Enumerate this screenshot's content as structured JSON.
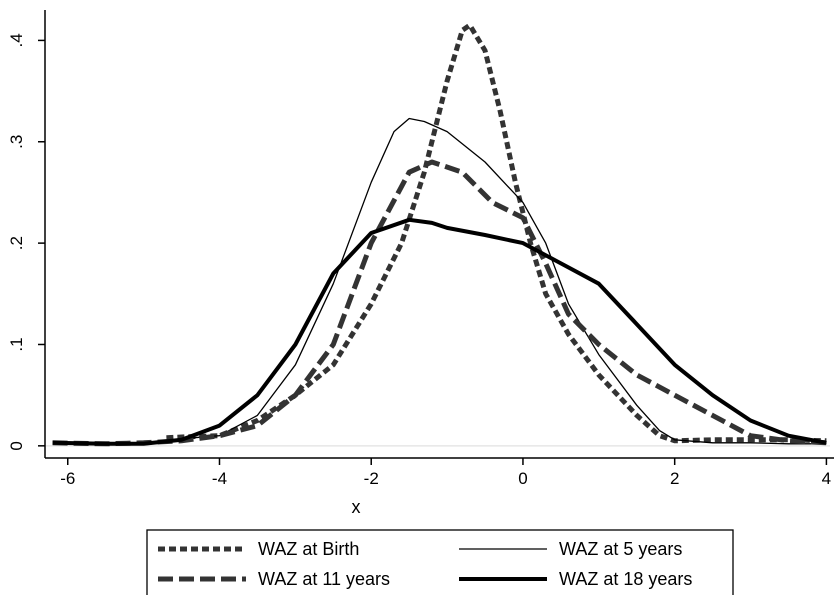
{
  "chart_data": {
    "type": "line",
    "title": "",
    "xlabel": "x",
    "ylabel": "",
    "xlim": [
      -6.3,
      4.1
    ],
    "ylim": [
      -0.012,
      0.43
    ],
    "x_ticks": [
      {
        "value": -6,
        "label": "-6"
      },
      {
        "value": -4,
        "label": "-4"
      },
      {
        "value": -2,
        "label": "-2"
      },
      {
        "value": 0,
        "label": "0"
      },
      {
        "value": 2,
        "label": "2"
      },
      {
        "value": 4,
        "label": "4"
      }
    ],
    "y_ticks": [
      {
        "value": 0,
        "label": "0"
      },
      {
        "value": 0.1,
        "label": ".1"
      },
      {
        "value": 0.2,
        "label": ".2"
      },
      {
        "value": 0.3,
        "label": ".3"
      },
      {
        "value": 0.4,
        "label": ".4"
      }
    ],
    "grid": false,
    "legend_position": "bottom",
    "series": [
      {
        "name": "WAZ at Birth",
        "style": "short-dash",
        "color": "#333333",
        "points": [
          [
            -4.7,
            0.008
          ],
          [
            -4.4,
            0.009
          ],
          [
            -4.0,
            0.01
          ],
          [
            -3.5,
            0.025
          ],
          [
            -3.0,
            0.05
          ],
          [
            -2.5,
            0.08
          ],
          [
            -2.0,
            0.14
          ],
          [
            -1.6,
            0.2
          ],
          [
            -1.3,
            0.27
          ],
          [
            -1.0,
            0.36
          ],
          [
            -0.8,
            0.41
          ],
          [
            -0.7,
            0.415
          ],
          [
            -0.5,
            0.39
          ],
          [
            -0.3,
            0.33
          ],
          [
            -0.1,
            0.26
          ],
          [
            0.1,
            0.2
          ],
          [
            0.3,
            0.15
          ],
          [
            0.6,
            0.11
          ],
          [
            1.0,
            0.07
          ],
          [
            1.5,
            0.03
          ],
          [
            1.8,
            0.01
          ],
          [
            2.0,
            0.005
          ],
          [
            2.5,
            0.006
          ],
          [
            3.0,
            0.006
          ],
          [
            3.5,
            0.006
          ],
          [
            4.0,
            0.005
          ]
        ]
      },
      {
        "name": "WAZ at 5 years",
        "style": "thin",
        "color": "#000000",
        "points": [
          [
            -4.5,
            0.007
          ],
          [
            -4.0,
            0.01
          ],
          [
            -3.5,
            0.03
          ],
          [
            -3.0,
            0.08
          ],
          [
            -2.5,
            0.16
          ],
          [
            -2.0,
            0.26
          ],
          [
            -1.7,
            0.31
          ],
          [
            -1.5,
            0.323
          ],
          [
            -1.3,
            0.32
          ],
          [
            -1.0,
            0.31
          ],
          [
            -0.5,
            0.28
          ],
          [
            0.0,
            0.24
          ],
          [
            0.3,
            0.2
          ],
          [
            0.6,
            0.14
          ],
          [
            1.0,
            0.09
          ],
          [
            1.5,
            0.04
          ],
          [
            1.8,
            0.015
          ],
          [
            2.0,
            0.006
          ],
          [
            2.5,
            0.003
          ],
          [
            3.0,
            0.003
          ],
          [
            3.5,
            0.002
          ],
          [
            4.0,
            0.002
          ]
        ]
      },
      {
        "name": "WAZ at 11 years",
        "style": "long-dash",
        "color": "#333333",
        "points": [
          [
            -6.2,
            0.003
          ],
          [
            -5.5,
            0.002
          ],
          [
            -5.0,
            0.003
          ],
          [
            -4.5,
            0.005
          ],
          [
            -4.0,
            0.01
          ],
          [
            -3.5,
            0.02
          ],
          [
            -3.0,
            0.05
          ],
          [
            -2.5,
            0.1
          ],
          [
            -2.0,
            0.2
          ],
          [
            -1.5,
            0.27
          ],
          [
            -1.2,
            0.28
          ],
          [
            -0.8,
            0.27
          ],
          [
            -0.4,
            0.24
          ],
          [
            0.0,
            0.225
          ],
          [
            0.3,
            0.18
          ],
          [
            0.6,
            0.13
          ],
          [
            1.0,
            0.1
          ],
          [
            1.5,
            0.07
          ],
          [
            2.0,
            0.05
          ],
          [
            2.5,
            0.03
          ],
          [
            3.0,
            0.01
          ],
          [
            3.5,
            0.005
          ],
          [
            4.0,
            0.003
          ]
        ]
      },
      {
        "name": "WAZ at 18 years",
        "style": "thick",
        "color": "#000000",
        "points": [
          [
            -6.2,
            0.003
          ],
          [
            -5.5,
            0.002
          ],
          [
            -5.0,
            0.002
          ],
          [
            -4.5,
            0.006
          ],
          [
            -4.0,
            0.02
          ],
          [
            -3.5,
            0.05
          ],
          [
            -3.0,
            0.1
          ],
          [
            -2.5,
            0.17
          ],
          [
            -2.0,
            0.21
          ],
          [
            -1.5,
            0.223
          ],
          [
            -1.2,
            0.22
          ],
          [
            -1.0,
            0.215
          ],
          [
            -0.5,
            0.208
          ],
          [
            0.0,
            0.2
          ],
          [
            0.5,
            0.18
          ],
          [
            1.0,
            0.16
          ],
          [
            1.5,
            0.12
          ],
          [
            2.0,
            0.08
          ],
          [
            2.5,
            0.05
          ],
          [
            3.0,
            0.025
          ],
          [
            3.5,
            0.01
          ],
          [
            4.0,
            0.003
          ]
        ]
      }
    ]
  }
}
